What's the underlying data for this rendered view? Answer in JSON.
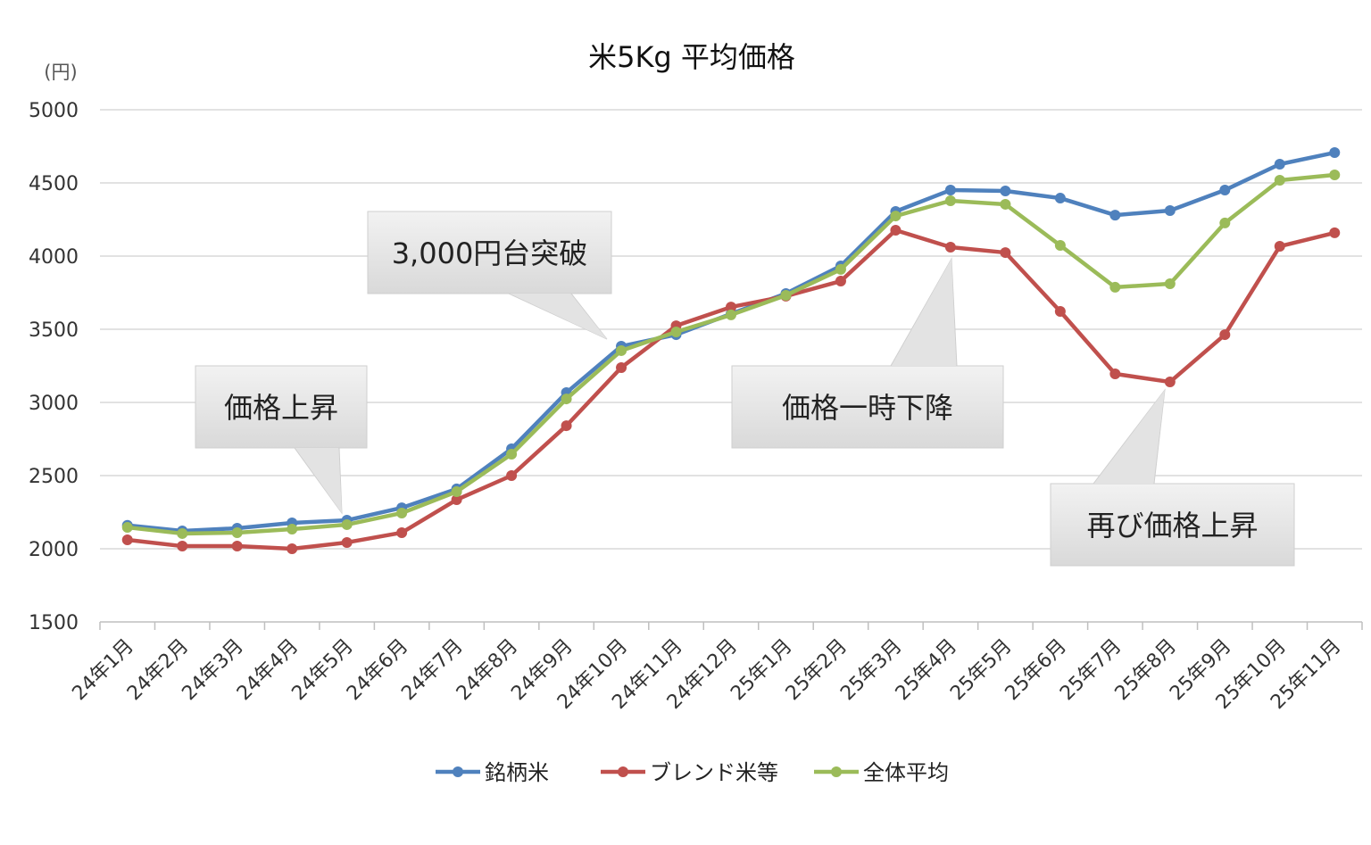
{
  "chart_data": {
    "type": "line",
    "title": "米5Kg 平均価格",
    "ylabel": "(円)",
    "xlabel": "",
    "ylim": [
      1500,
      5000
    ],
    "yticks": [
      1500,
      2000,
      2500,
      3000,
      3500,
      4000,
      4500,
      5000
    ],
    "grid": true,
    "legend": "bottom",
    "categories": [
      "24年1月",
      "24年2月",
      "24年3月",
      "24年4月",
      "24年5月",
      "24年6月",
      "24年7月",
      "24年8月",
      "24年9月",
      "24年10月",
      "24年11月",
      "24年12月",
      "25年1月",
      "25年2月",
      "25年3月",
      "25年4月",
      "25年5月",
      "25年6月",
      "25年7月",
      "25年8月",
      "25年9月",
      "25年10月",
      "25年11月"
    ],
    "series": [
      {
        "name": "銘柄米",
        "color": "#4f81bd",
        "values": [
          2160,
          2122,
          2140,
          2177,
          2195,
          2280,
          2409,
          2683,
          3067,
          3384,
          3463,
          3605,
          3744,
          3933,
          4305,
          4451,
          4445,
          4396,
          4280,
          4311,
          4451,
          4628,
          4707
        ]
      },
      {
        "name": "ブレンド米等",
        "color": "#c0504d",
        "values": [
          2061,
          2018,
          2018,
          2000,
          2043,
          2110,
          2335,
          2500,
          2841,
          3238,
          3524,
          3652,
          3726,
          3829,
          4177,
          4061,
          4024,
          3622,
          3195,
          3140,
          3463,
          4067,
          4159
        ]
      },
      {
        "name": "全体平均",
        "color": "#9bbb59",
        "values": [
          2146,
          2104,
          2110,
          2134,
          2165,
          2244,
          2390,
          2646,
          3024,
          3354,
          3482,
          3598,
          3732,
          3909,
          4274,
          4378,
          4354,
          4073,
          3787,
          3811,
          4226,
          4518,
          4555
        ]
      }
    ],
    "annotations": [
      {
        "text": "価格上昇",
        "target": "24年5月"
      },
      {
        "text": "3,000円台突破",
        "target": "24年10月"
      },
      {
        "text": "価格一時下降",
        "target": "25年4月"
      },
      {
        "text": "再び価格上昇",
        "target": "25年8月"
      }
    ]
  }
}
